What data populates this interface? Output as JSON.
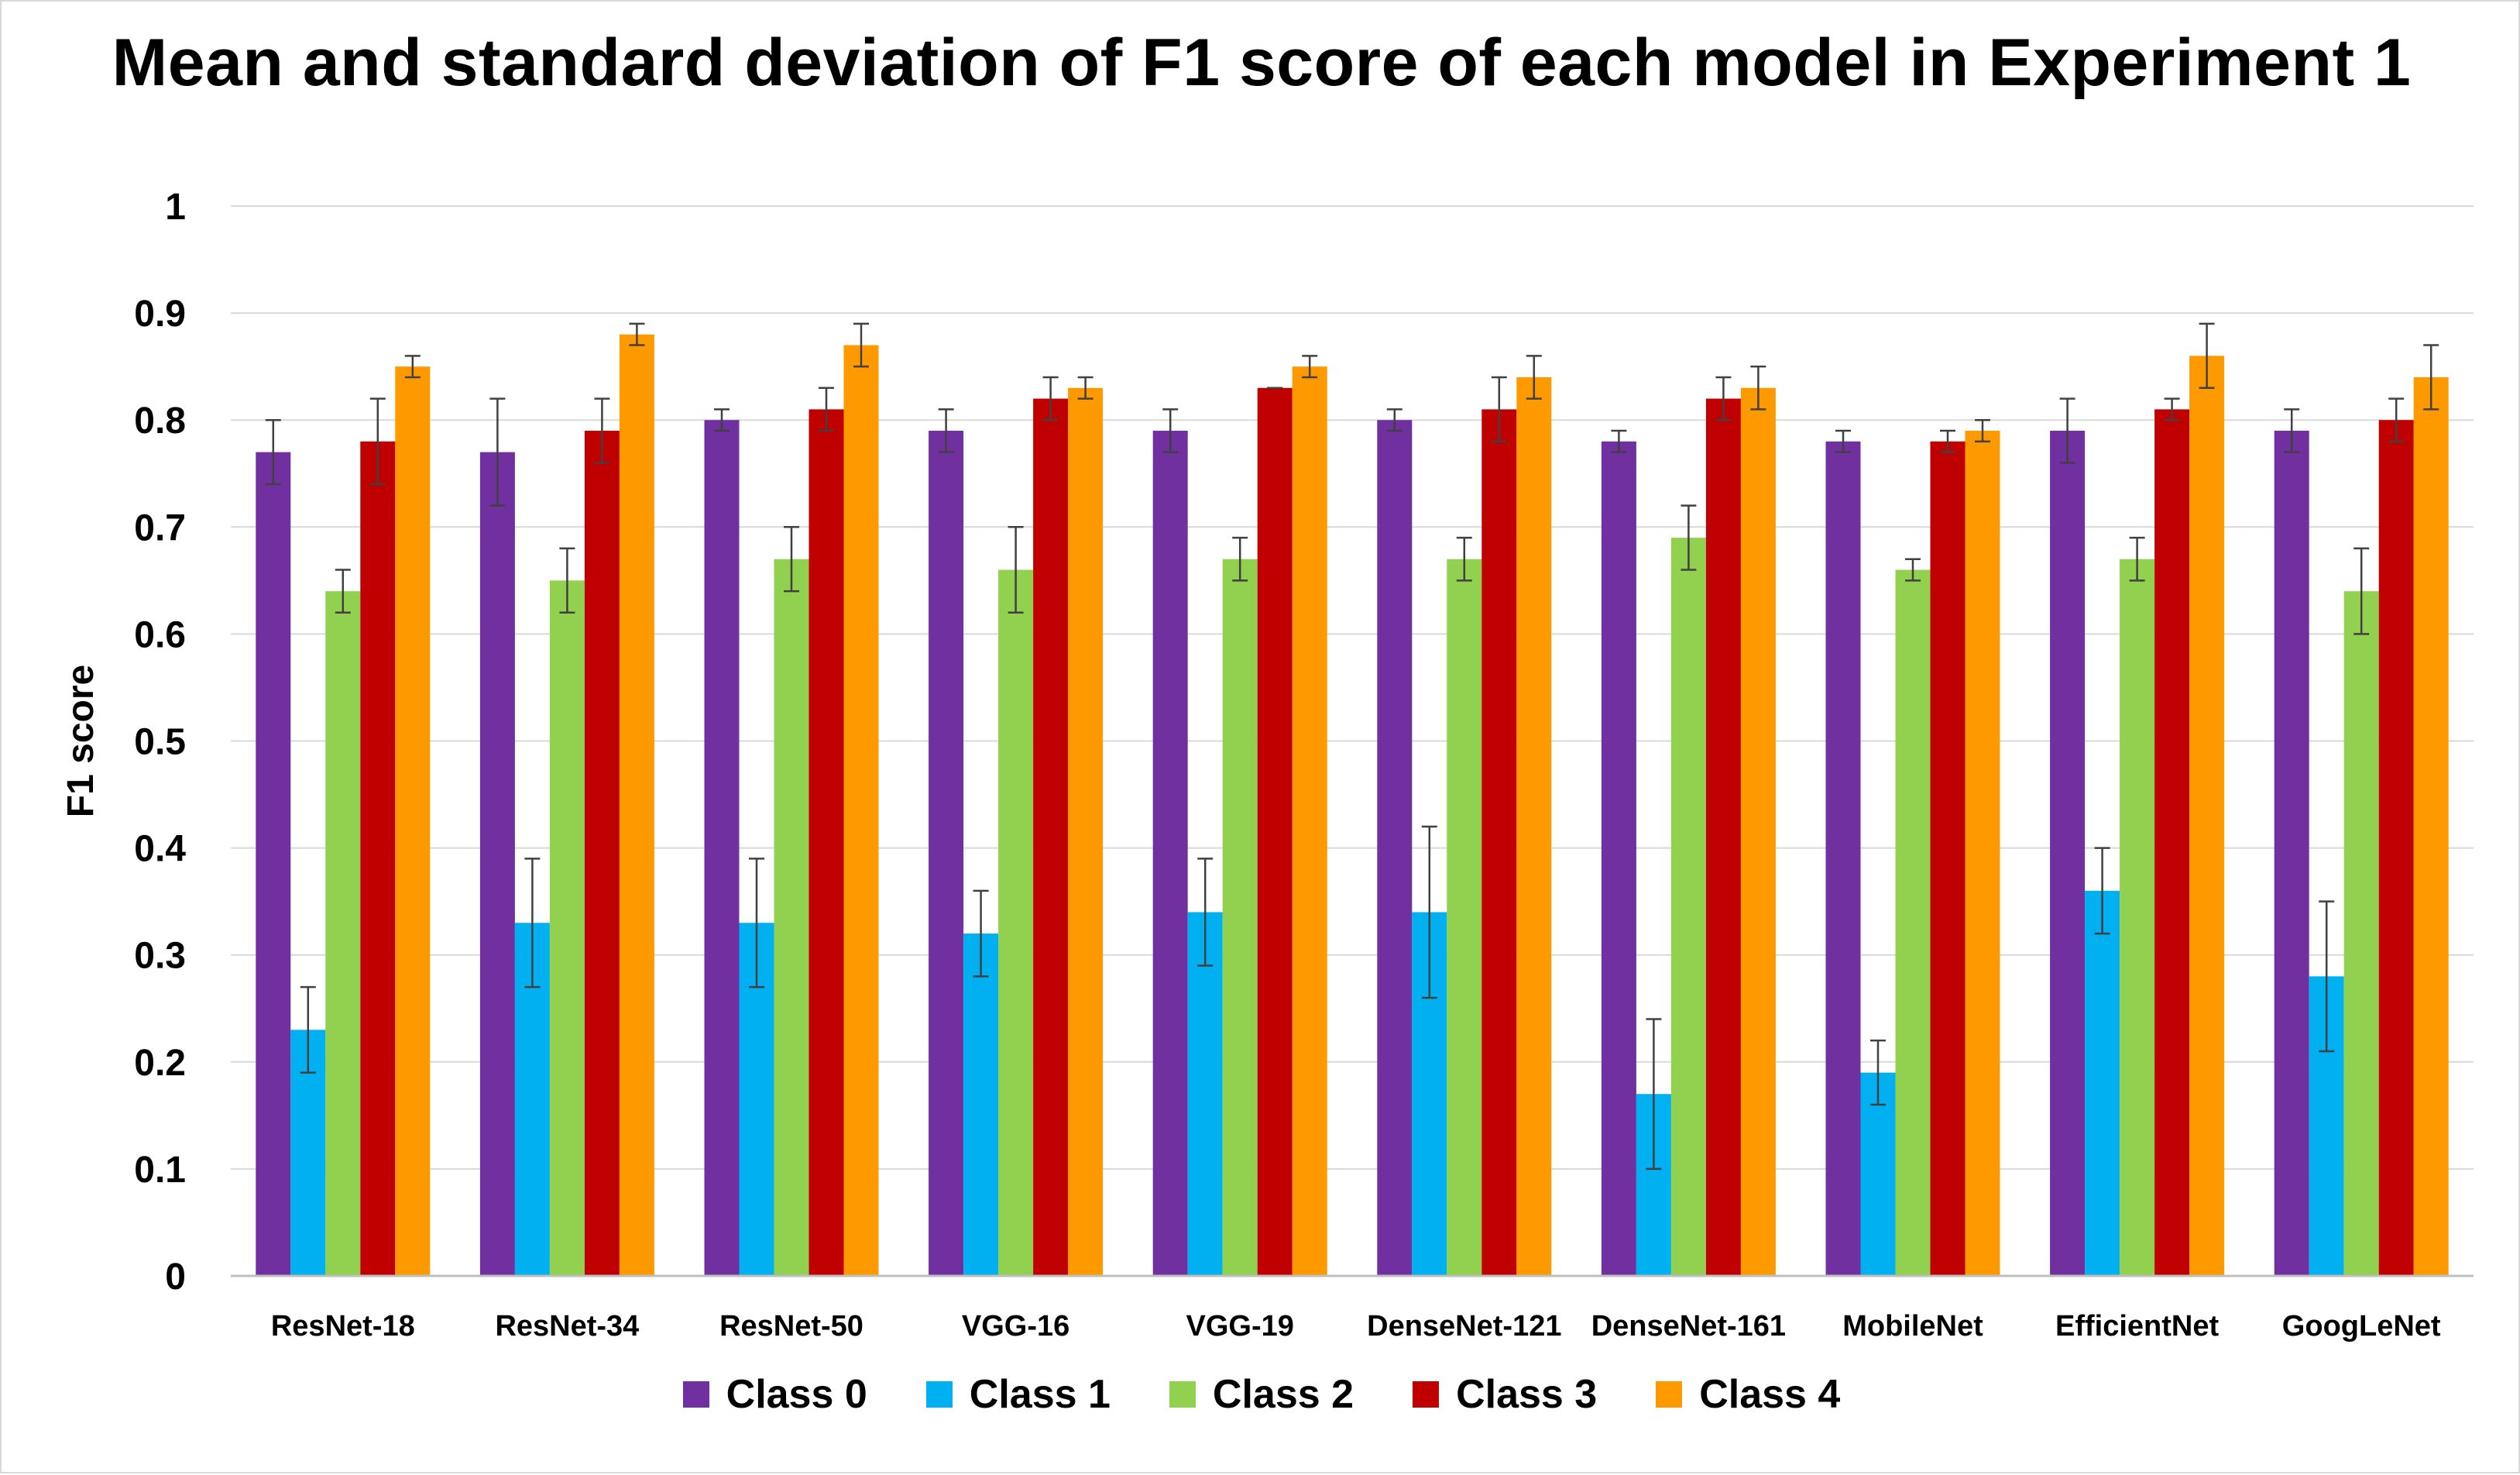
{
  "chart_data": {
    "type": "bar",
    "title": "Mean and standard deviation of F1 score of each model in Experiment 1",
    "xlabel": "",
    "ylabel": "F1 score",
    "ylim": [
      0,
      1
    ],
    "yticks": [
      "0",
      "0.1",
      "0.2",
      "0.3",
      "0.4",
      "0.5",
      "0.6",
      "0.7",
      "0.8",
      "0.9",
      "1"
    ],
    "grid": true,
    "legend_position": "bottom",
    "categories": [
      "ResNet-18",
      "ResNet-34",
      "ResNet-50",
      "VGG-16",
      "VGG-19",
      "DenseNet-121",
      "DenseNet-161",
      "MobileNet",
      "EfficientNet",
      "GoogLeNet"
    ],
    "series": [
      {
        "name": "Class 0",
        "color": "#7030a0",
        "values": [
          0.77,
          0.77,
          0.8,
          0.79,
          0.79,
          0.8,
          0.78,
          0.78,
          0.79,
          0.79
        ],
        "errors": [
          0.03,
          0.05,
          0.01,
          0.02,
          0.02,
          0.01,
          0.01,
          0.01,
          0.03,
          0.02
        ]
      },
      {
        "name": "Class 1",
        "color": "#00b0f0",
        "values": [
          0.23,
          0.33,
          0.33,
          0.32,
          0.34,
          0.34,
          0.17,
          0.19,
          0.36,
          0.28
        ],
        "errors": [
          0.04,
          0.06,
          0.06,
          0.04,
          0.05,
          0.08,
          0.07,
          0.03,
          0.04,
          0.07
        ]
      },
      {
        "name": "Class 2",
        "color": "#92d050",
        "values": [
          0.64,
          0.65,
          0.67,
          0.66,
          0.67,
          0.67,
          0.69,
          0.66,
          0.67,
          0.64
        ],
        "errors": [
          0.02,
          0.03,
          0.03,
          0.04,
          0.02,
          0.02,
          0.03,
          0.01,
          0.02,
          0.04
        ]
      },
      {
        "name": "Class 3",
        "color": "#c00000",
        "values": [
          0.78,
          0.79,
          0.81,
          0.82,
          0.83,
          0.81,
          0.82,
          0.78,
          0.81,
          0.8
        ],
        "errors": [
          0.04,
          0.03,
          0.02,
          0.02,
          0.0,
          0.03,
          0.02,
          0.01,
          0.01,
          0.02
        ]
      },
      {
        "name": "Class 4",
        "color": "#ff9900",
        "values": [
          0.85,
          0.88,
          0.87,
          0.83,
          0.85,
          0.84,
          0.83,
          0.79,
          0.86,
          0.84
        ],
        "errors": [
          0.01,
          0.01,
          0.02,
          0.01,
          0.01,
          0.02,
          0.02,
          0.01,
          0.03,
          0.03
        ]
      }
    ]
  }
}
